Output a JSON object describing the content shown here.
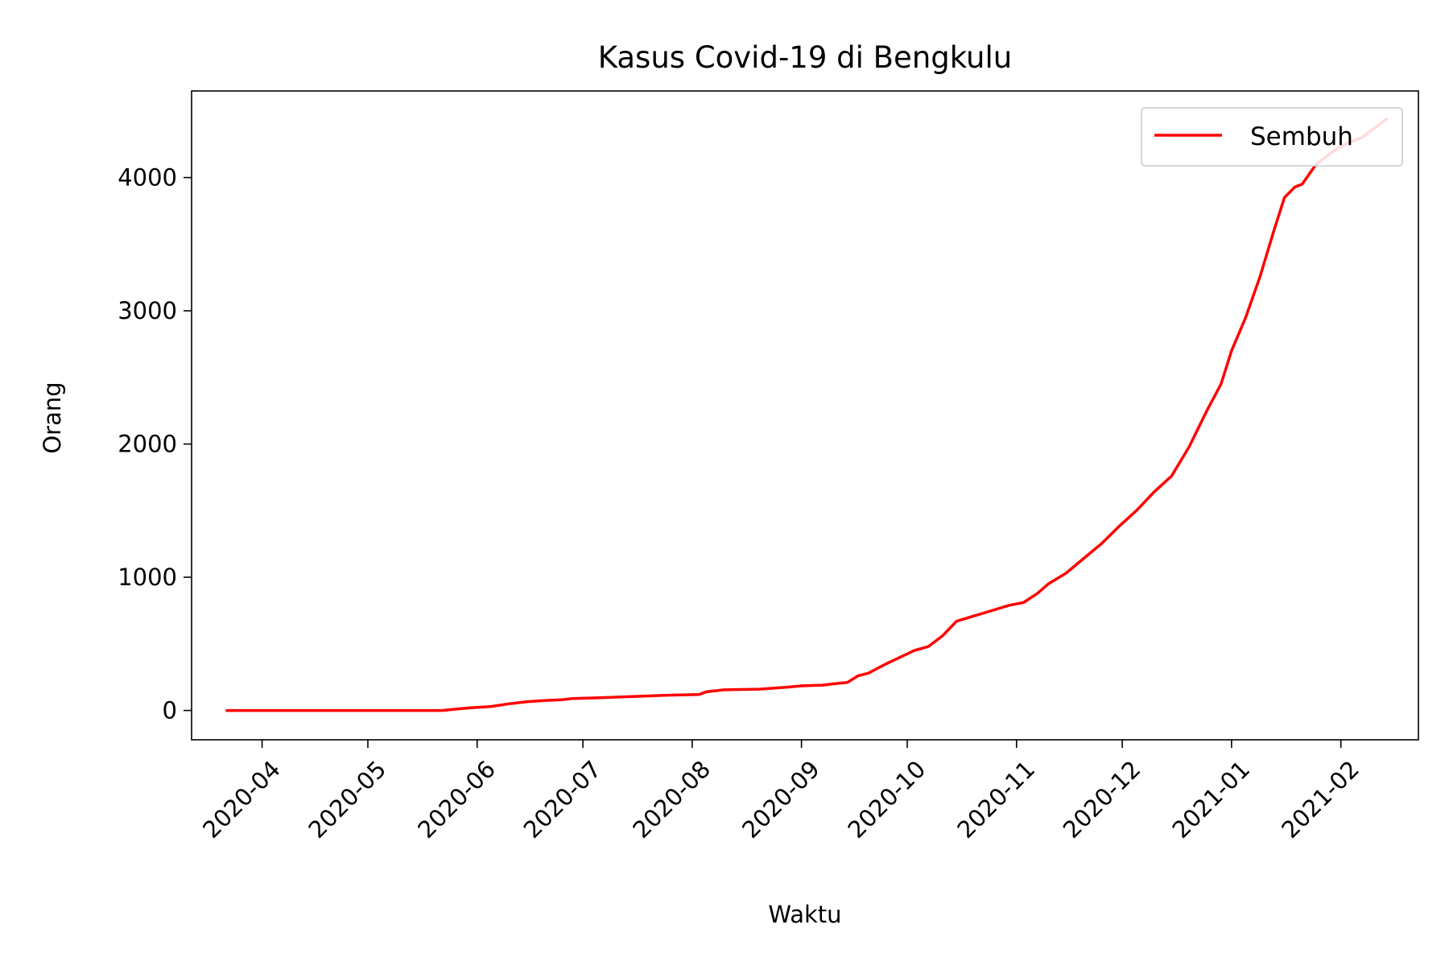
{
  "chart_data": {
    "type": "line",
    "title": "Kasus Covid-19 di Bengkulu",
    "xlabel": "Waktu",
    "ylabel": "Orang",
    "xlim": [
      "2020-03-12",
      "2021-02-23"
    ],
    "ylim": [
      -220,
      4650
    ],
    "x_ticks": [
      "2020-04",
      "2020-05",
      "2020-06",
      "2020-07",
      "2020-08",
      "2020-09",
      "2020-10",
      "2020-11",
      "2020-12",
      "2021-01",
      "2021-02"
    ],
    "x_tick_dates": [
      "2020-04-01",
      "2020-05-01",
      "2020-06-01",
      "2020-07-01",
      "2020-08-01",
      "2020-09-01",
      "2020-10-01",
      "2020-11-01",
      "2020-12-01",
      "2021-01-01",
      "2021-02-01"
    ],
    "y_ticks": [
      0,
      1000,
      2000,
      3000,
      4000
    ],
    "y_tick_labels": [
      "0",
      "1000",
      "2000",
      "3000",
      "4000"
    ],
    "grid": false,
    "legend": {
      "position": "top-right",
      "entries": [
        "Sembuh"
      ]
    },
    "series": [
      {
        "name": "Sembuh",
        "color": "#ff0000",
        "x": [
          "2020-03-22",
          "2020-04-15",
          "2020-05-10",
          "2020-05-22",
          "2020-05-26",
          "2020-05-30",
          "2020-06-02",
          "2020-06-05",
          "2020-06-10",
          "2020-06-15",
          "2020-06-20",
          "2020-06-25",
          "2020-06-28",
          "2020-07-05",
          "2020-07-15",
          "2020-07-25",
          "2020-08-03",
          "2020-08-05",
          "2020-08-10",
          "2020-08-20",
          "2020-08-28",
          "2020-09-01",
          "2020-09-07",
          "2020-09-10",
          "2020-09-14",
          "2020-09-17",
          "2020-09-20",
          "2020-09-25",
          "2020-09-29",
          "2020-10-03",
          "2020-10-07",
          "2020-10-11",
          "2020-10-15",
          "2020-10-20",
          "2020-10-25",
          "2020-10-30",
          "2020-11-03",
          "2020-11-07",
          "2020-11-10",
          "2020-11-15",
          "2020-11-20",
          "2020-11-25",
          "2020-11-30",
          "2020-12-05",
          "2020-12-10",
          "2020-12-15",
          "2020-12-20",
          "2020-12-25",
          "2020-12-29",
          "2021-01-01",
          "2021-01-05",
          "2021-01-09",
          "2021-01-13",
          "2021-01-16",
          "2021-01-19",
          "2021-01-21",
          "2021-01-25",
          "2021-01-30",
          "2021-02-03",
          "2021-02-07",
          "2021-02-11",
          "2021-02-14"
        ],
        "values": [
          0,
          0,
          0,
          0,
          10,
          20,
          25,
          30,
          50,
          65,
          75,
          80,
          90,
          95,
          105,
          115,
          120,
          140,
          155,
          160,
          175,
          185,
          190,
          200,
          210,
          260,
          280,
          350,
          400,
          450,
          480,
          560,
          670,
          710,
          750,
          790,
          810,
          880,
          950,
          1030,
          1140,
          1250,
          1380,
          1500,
          1640,
          1760,
          1980,
          2250,
          2450,
          2700,
          2950,
          3250,
          3600,
          3850,
          3930,
          3950,
          4100,
          4200,
          4260,
          4300,
          4380,
          4440
        ]
      }
    ]
  }
}
